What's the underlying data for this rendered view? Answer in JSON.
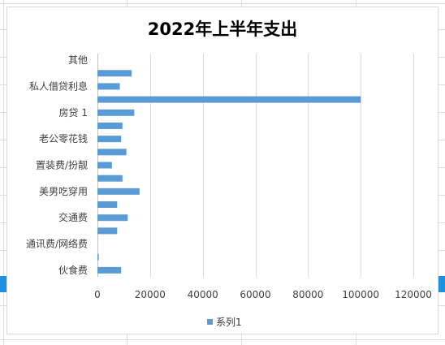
{
  "chart_data": {
    "type": "bar",
    "orientation": "horizontal",
    "title": "2022年上半年支出",
    "categories": [
      "伙食费",
      "",
      "通讯费/网络费",
      "",
      "交通费",
      "",
      "美男吃穿用",
      "",
      "置装费/扮靓",
      "",
      "老公零花钱",
      "",
      "房贷 1",
      "",
      "私人借贷利息",
      "",
      "其他"
    ],
    "series": [
      {
        "name": "系列1",
        "color": "#5b9bd5",
        "values": [
          9000,
          500,
          0,
          7500,
          11500,
          7500,
          16000,
          9500,
          5500,
          11000,
          9000,
          9500,
          14000,
          100000,
          8500,
          13000,
          0
        ]
      }
    ],
    "xlim": [
      0,
      120000
    ],
    "xticks": [
      "0",
      "20000",
      "40000",
      "60000",
      "80000",
      "100000",
      "120000"
    ],
    "grid": true,
    "legend_position": "bottom"
  }
}
